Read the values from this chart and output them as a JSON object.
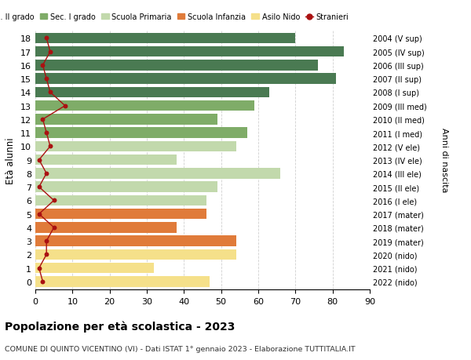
{
  "ages": [
    18,
    17,
    16,
    15,
    14,
    13,
    12,
    11,
    10,
    9,
    8,
    7,
    6,
    5,
    4,
    3,
    2,
    1,
    0
  ],
  "right_labels": [
    "2004 (V sup)",
    "2005 (IV sup)",
    "2006 (III sup)",
    "2007 (II sup)",
    "2008 (I sup)",
    "2009 (III med)",
    "2010 (II med)",
    "2011 (I med)",
    "2012 (V ele)",
    "2013 (IV ele)",
    "2014 (III ele)",
    "2015 (II ele)",
    "2016 (I ele)",
    "2017 (mater)",
    "2018 (mater)",
    "2019 (mater)",
    "2020 (nido)",
    "2021 (nido)",
    "2022 (nido)"
  ],
  "bar_values": [
    70,
    83,
    76,
    81,
    63,
    59,
    49,
    57,
    54,
    38,
    66,
    49,
    46,
    46,
    38,
    54,
    54,
    32,
    47
  ],
  "bar_colors": [
    "#4a7a52",
    "#4a7a52",
    "#4a7a52",
    "#4a7a52",
    "#4a7a52",
    "#7fac68",
    "#7fac68",
    "#7fac68",
    "#c2d9ac",
    "#c2d9ac",
    "#c2d9ac",
    "#c2d9ac",
    "#c2d9ac",
    "#e07b3a",
    "#e07b3a",
    "#e07b3a",
    "#f5e08a",
    "#f5e08a",
    "#f5e08a"
  ],
  "stranieri_values": [
    3,
    4,
    2,
    3,
    4,
    8,
    2,
    3,
    4,
    1,
    3,
    1,
    5,
    1,
    5,
    3,
    3,
    1,
    2
  ],
  "legend_labels": [
    "Sec. II grado",
    "Sec. I grado",
    "Scuola Primaria",
    "Scuola Infanzia",
    "Asilo Nido",
    "Stranieri"
  ],
  "legend_colors": [
    "#4a7a52",
    "#7fac68",
    "#c2d9ac",
    "#e07b3a",
    "#f5e08a",
    "#aa1111"
  ],
  "ylabel": "Età alunni",
  "right_ylabel": "Anni di nascita",
  "title": "Popolazione per età scolastica - 2023",
  "subtitle": "COMUNE DI QUINTO VICENTINO (VI) - Dati ISTAT 1° gennaio 2023 - Elaborazione TUTTITALIA.IT",
  "xlim": [
    0,
    90
  ],
  "xticks": [
    0,
    10,
    20,
    30,
    40,
    50,
    60,
    70,
    80,
    90
  ],
  "background_color": "#ffffff",
  "grid_color": "#d0d0d0",
  "bar_height": 0.78
}
